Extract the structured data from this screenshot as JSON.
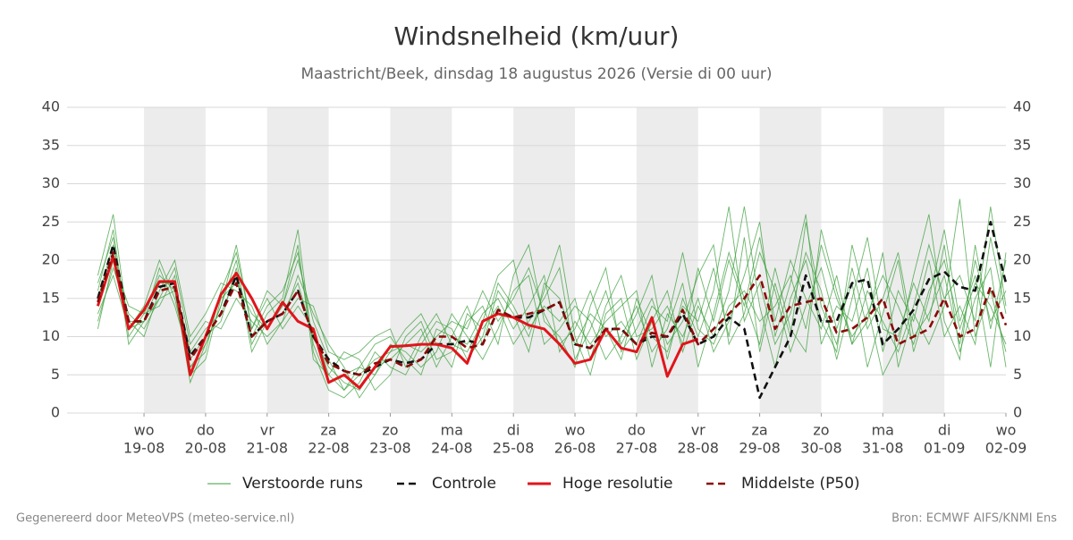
{
  "chart_data": {
    "type": "line",
    "title": "Windsnelheid (km/uur)",
    "subtitle": "Maastricht/Beek, dinsdag 18 augustus 2026 (Versie di 00 uur)",
    "footer_left": "Gegenereerd door MeteoVPS (meteo-service.nl)",
    "footer_right": "Bron: ECMWF AIFS/KNMI Ens",
    "x": [
      "18-08 06:00",
      "18-08 12:00",
      "18-08 18:00",
      "19-08 00:00",
      "19-08 06:00",
      "19-08 12:00",
      "19-08 18:00",
      "20-08 00:00",
      "20-08 06:00",
      "20-08 12:00",
      "20-08 18:00",
      "21-08 00:00",
      "21-08 06:00",
      "21-08 12:00",
      "21-08 18:00",
      "22-08 00:00",
      "22-08 06:00",
      "22-08 12:00",
      "22-08 18:00",
      "23-08 00:00",
      "23-08 06:00",
      "23-08 12:00",
      "23-08 18:00",
      "24-08 00:00",
      "24-08 06:00",
      "24-08 12:00",
      "24-08 18:00",
      "25-08 00:00",
      "25-08 06:00",
      "25-08 12:00",
      "25-08 18:00",
      "26-08 00:00",
      "26-08 06:00",
      "26-08 12:00",
      "26-08 18:00",
      "27-08 00:00",
      "27-08 06:00",
      "27-08 12:00",
      "27-08 18:00",
      "28-08 00:00",
      "28-08 06:00",
      "28-08 12:00",
      "28-08 18:00",
      "29-08 00:00",
      "29-08 06:00",
      "29-08 12:00",
      "29-08 18:00",
      "30-08 00:00",
      "30-08 06:00",
      "30-08 12:00",
      "30-08 18:00",
      "31-08 00:00",
      "31-08 06:00",
      "31-08 12:00",
      "31-08 18:00",
      "01-09 00:00",
      "01-09 06:00",
      "01-09 12:00",
      "01-09 18:00",
      "02-09 00:00"
    ],
    "xlim": [
      "17-08 18:00",
      "02-09 00:00"
    ],
    "xticks": [
      {
        "value": "19-08 00:00",
        "label": "19-08",
        "weekday": "wo"
      },
      {
        "value": "20-08 00:00",
        "label": "20-08",
        "weekday": "do"
      },
      {
        "value": "21-08 00:00",
        "label": "21-08",
        "weekday": "vr"
      },
      {
        "value": "22-08 00:00",
        "label": "22-08",
        "weekday": "za"
      },
      {
        "value": "23-08 00:00",
        "label": "23-08",
        "weekday": "zo"
      },
      {
        "value": "24-08 00:00",
        "label": "24-08",
        "weekday": "ma"
      },
      {
        "value": "25-08 00:00",
        "label": "25-08",
        "weekday": "di"
      },
      {
        "value": "26-08 00:00",
        "label": "26-08",
        "weekday": "wo"
      },
      {
        "value": "27-08 00:00",
        "label": "27-08",
        "weekday": "do"
      },
      {
        "value": "28-08 00:00",
        "label": "28-08",
        "weekday": "vr"
      },
      {
        "value": "29-08 00:00",
        "label": "29-08",
        "weekday": "za"
      },
      {
        "value": "30-08 00:00",
        "label": "30-08",
        "weekday": "zo"
      },
      {
        "value": "31-08 00:00",
        "label": "31-08",
        "weekday": "ma"
      },
      {
        "value": "01-09 00:00",
        "label": "01-09",
        "weekday": "di"
      },
      {
        "value": "02-09 00:00",
        "label": "02-09",
        "weekday": "wo"
      }
    ],
    "ylim": [
      0,
      40
    ],
    "yticks": [
      0,
      5,
      10,
      15,
      20,
      25,
      30,
      35,
      40
    ],
    "y2lim": [
      0,
      40
    ],
    "y2ticks": [
      0,
      5,
      10,
      15,
      20,
      25,
      30,
      35,
      40
    ],
    "grid": true,
    "shade_alternate_days": true,
    "legend": "bottom",
    "series": [
      {
        "name": "Verstoorde runs",
        "color": "#3a9d3a",
        "members": [
          [
            16,
            24,
            10,
            13,
            18,
            16,
            4,
            9,
            14,
            20,
            9,
            13,
            15,
            24,
            8,
            3,
            2,
            4,
            8,
            6,
            5,
            9,
            12,
            11,
            7,
            10,
            17,
            14,
            10,
            16,
            22,
            10,
            5,
            13,
            15,
            7,
            12,
            16,
            8,
            14,
            10,
            16,
            27,
            14,
            6,
            15,
            20,
            12,
            8,
            22,
            14,
            5,
            9,
            18,
            26,
            12,
            7,
            22,
            11,
            20
          ],
          [
            12,
            19,
            13,
            11,
            15,
            19,
            9,
            12,
            11,
            15,
            12,
            10,
            12,
            18,
            13,
            9,
            6,
            2,
            5,
            9,
            8,
            6,
            8,
            13,
            10,
            7,
            11,
            16,
            18,
            9,
            11,
            14,
            12,
            7,
            10,
            14,
            8,
            11,
            17,
            6,
            13,
            21,
            15,
            9,
            19,
            11,
            8,
            24,
            16,
            9,
            12,
            21,
            6,
            13,
            9,
            14,
            28,
            10,
            16,
            8
          ],
          [
            18,
            26,
            11,
            14,
            20,
            15,
            6,
            8,
            16,
            21,
            11,
            15,
            11,
            14,
            11,
            5,
            8,
            7,
            3,
            5,
            10,
            12,
            7,
            8,
            12,
            14,
            9,
            18,
            22,
            12,
            10,
            6,
            14,
            19,
            8,
            11,
            15,
            9,
            12,
            18,
            22,
            9,
            13,
            21,
            16,
            8,
            14,
            19,
            11,
            17,
            6,
            13,
            20,
            8,
            15,
            24,
            12,
            18,
            6,
            21
          ],
          [
            15,
            22,
            12,
            12,
            17,
            17,
            8,
            11,
            13,
            18,
            10,
            14,
            16,
            21,
            9,
            4,
            5,
            6,
            9,
            10,
            7,
            5,
            11,
            10,
            9,
            13,
            15,
            11,
            14,
            18,
            8,
            12,
            9,
            12,
            14,
            16,
            6,
            13,
            10,
            15,
            8,
            12,
            18,
            25,
            10,
            17,
            26,
            9,
            14,
            12,
            19,
            8,
            16,
            12,
            20,
            10,
            14,
            9,
            23,
            13
          ],
          [
            11,
            20,
            14,
            13,
            14,
            18,
            5,
            7,
            15,
            17,
            13,
            11,
            14,
            20,
            12,
            7,
            3,
            5,
            7,
            8,
            11,
            13,
            9,
            6,
            13,
            11,
            14,
            9,
            12,
            15,
            19,
            7,
            11,
            16,
            9,
            13,
            18,
            7,
            15,
            10,
            16,
            27,
            12,
            17,
            9,
            13,
            21,
            16,
            7,
            15,
            23,
            11,
            10,
            17,
            12,
            22,
            8,
            15,
            19,
            6
          ],
          [
            17,
            23,
            9,
            12,
            19,
            14,
            7,
            10,
            12,
            19,
            8,
            12,
            13,
            17,
            10,
            6,
            4,
            3,
            6,
            7,
            9,
            8,
            10,
            12,
            11,
            16,
            12,
            15,
            19,
            13,
            9,
            11,
            16,
            10,
            12,
            9,
            14,
            12,
            21,
            11,
            9,
            14,
            16,
            12,
            14,
            18,
            11,
            22,
            15,
            10,
            13,
            18,
            14,
            9,
            16,
            20,
            11,
            17,
            14,
            9
          ],
          [
            14,
            21,
            12,
            10,
            16,
            20,
            10,
            13,
            17,
            16,
            14,
            9,
            12,
            15,
            14,
            8,
            7,
            8,
            10,
            11,
            6,
            10,
            13,
            9,
            8,
            12,
            18,
            20,
            11,
            14,
            12,
            15,
            7,
            14,
            18,
            10,
            11,
            14,
            9,
            19,
            12,
            20,
            14,
            23,
            12,
            20,
            15,
            11,
            18,
            9,
            16,
            12,
            8,
            14,
            22,
            15,
            18,
            12,
            27,
            14
          ],
          [
            13,
            18,
            11,
            12,
            15,
            16,
            6,
            9,
            14,
            22,
            11,
            16,
            14,
            22,
            7,
            5,
            3,
            6,
            5,
            8,
            9,
            11,
            6,
            10,
            14,
            9,
            16,
            13,
            8,
            17,
            15,
            9,
            13,
            11,
            7,
            15,
            10,
            8,
            14,
            12,
            19,
            10,
            23,
            8,
            17,
            10,
            25,
            14,
            9,
            19,
            11,
            15,
            21,
            10,
            13,
            18,
            9,
            20,
            12,
            16
          ]
        ]
      },
      {
        "name": "Controle",
        "color": "#111111",
        "dashed": true,
        "values": [
          15,
          22,
          12,
          12,
          16.5,
          17,
          7.5,
          10,
          13,
          18,
          10,
          12,
          13,
          16,
          10,
          7,
          5.5,
          5,
          6,
          7,
          6.5,
          7,
          9,
          9,
          9.5,
          9,
          13.5,
          12.5,
          12.5,
          13.5,
          14.5,
          9,
          8.5,
          11,
          11,
          9,
          10,
          10,
          13,
          9,
          10,
          12.5,
          11,
          2,
          6,
          10,
          18,
          12,
          12,
          17,
          17.5,
          9,
          11,
          13.5,
          17.5,
          18.5,
          16.5,
          16,
          25,
          17
        ]
      },
      {
        "name": "Hoge resolutie",
        "color": "#e0151b",
        "values": [
          14,
          20.5,
          11,
          13.5,
          17.2,
          17.2,
          5,
          10,
          15.5,
          18.3,
          15,
          11,
          14.5,
          12,
          11,
          4,
          5,
          3.3,
          6,
          8.7,
          8.8,
          9,
          9,
          8.5,
          6.5,
          12,
          13,
          12.5,
          11.5,
          11,
          9,
          6.5,
          7,
          11,
          8.5,
          8,
          12.5,
          4.8,
          9,
          9.7,
          null,
          null,
          null,
          null,
          null,
          null,
          null,
          null,
          null,
          null,
          null,
          null,
          null,
          null,
          null,
          null,
          null,
          null,
          null,
          null
        ]
      },
      {
        "name": "Middelste (P50)",
        "color": "#8b0a0a",
        "dashed": true,
        "values": [
          14.5,
          21,
          12,
          12,
          16,
          16.5,
          7,
          10,
          13,
          17,
          10,
          12,
          13,
          16,
          10,
          6.5,
          5.5,
          5,
          6.5,
          7,
          6,
          7,
          10,
          10,
          8.5,
          9,
          13.5,
          12.5,
          13,
          13.5,
          14.5,
          9,
          8.5,
          11,
          11,
          9,
          10.5,
          10,
          13.5,
          9,
          11,
          13,
          15,
          18,
          11,
          14,
          14.5,
          15,
          10.5,
          11,
          12.5,
          15,
          9,
          10,
          11,
          15,
          10,
          11,
          16.5,
          11.5
        ]
      }
    ]
  }
}
